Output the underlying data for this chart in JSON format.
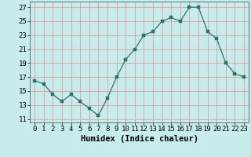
{
  "x": [
    0,
    1,
    2,
    3,
    4,
    5,
    6,
    7,
    8,
    9,
    10,
    11,
    12,
    13,
    14,
    15,
    16,
    17,
    18,
    19,
    20,
    21,
    22,
    23
  ],
  "y": [
    16.5,
    16.0,
    14.5,
    13.5,
    14.5,
    13.5,
    12.5,
    11.5,
    14.0,
    17.0,
    19.5,
    21.0,
    23.0,
    23.5,
    25.0,
    25.5,
    25.0,
    27.0,
    27.0,
    23.5,
    22.5,
    19.0,
    17.5,
    17.0
  ],
  "xlim": [
    -0.5,
    23.5
  ],
  "ylim": [
    10.5,
    27.8
  ],
  "yticks": [
    11,
    13,
    15,
    17,
    19,
    21,
    23,
    25,
    27
  ],
  "xticks": [
    0,
    1,
    2,
    3,
    4,
    5,
    6,
    7,
    8,
    9,
    10,
    11,
    12,
    13,
    14,
    15,
    16,
    17,
    18,
    19,
    20,
    21,
    22,
    23
  ],
  "xlabel": "Humidex (Indice chaleur)",
  "line_color": "#2d7070",
  "marker_color": "#2d7070",
  "bg_color": "#c8ecec",
  "grid_color": "#d8a0a0",
  "xlabel_fontsize": 7.5,
  "tick_fontsize": 6.5
}
